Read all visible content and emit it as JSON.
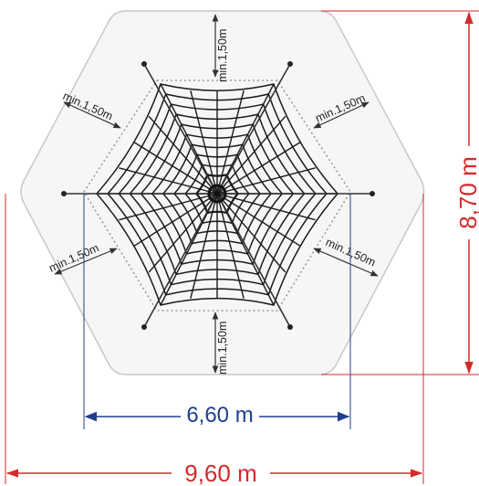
{
  "labels": {
    "clearance_top": "min.1,50m",
    "clearance_bottom": "min.1,50m",
    "clearance_upper_left": "min.1,50m",
    "clearance_upper_right": "min.1,50m",
    "clearance_lower_left": "min.1,50m",
    "clearance_lower_right": "min.1,50m"
  },
  "dimensions": {
    "inner_width": "6,60 m",
    "outer_width": "9,60 m",
    "outer_height": "8,70 m"
  },
  "colors": {
    "hexagon_fill": "#f6f6f6",
    "hexagon_stroke": "#c8c8c8",
    "dotted_zone": "#9a9a9a",
    "net": "#1a1a1a",
    "blue_dimension": "#1f3f8f",
    "red_dimension": "#d42a2a"
  }
}
